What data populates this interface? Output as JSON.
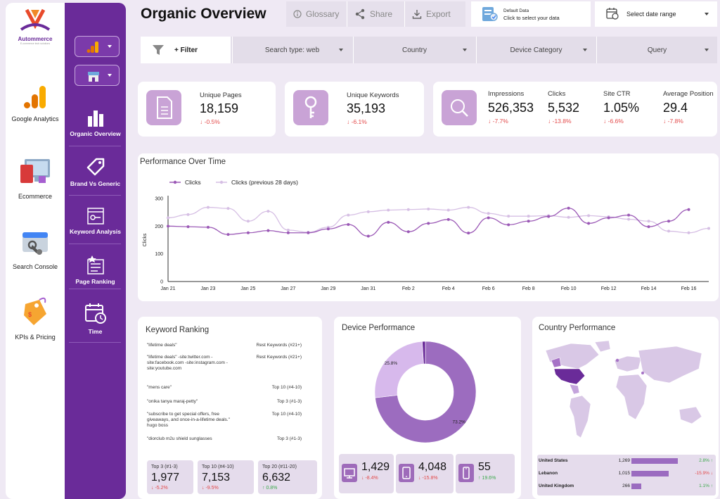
{
  "brand": {
    "name": "Autommerce",
    "tagline": "E-commerce tech solutions"
  },
  "rail": [
    {
      "label": "Google Analytics"
    },
    {
      "label": "Ecommerce"
    },
    {
      "label": "Search Console"
    },
    {
      "label": "KPIs & Pricing"
    }
  ],
  "nav": [
    {
      "label": "Organic Overview"
    },
    {
      "label": "Brand Vs Generic"
    },
    {
      "label": "Keyword Analysis"
    },
    {
      "label": "Page Ranking"
    },
    {
      "label": "Time"
    }
  ],
  "header": {
    "title": "Organic Overview",
    "glossary": "Glossary",
    "share": "Share",
    "export": "Export",
    "datasource_line1": "Default Data",
    "datasource_line2": "Click to select your data",
    "daterange": "Select date range"
  },
  "filters": {
    "filter_label": "+ Filter",
    "search_type": "Search type: web",
    "country": "Country",
    "device": "Device Category",
    "query": "Query"
  },
  "kpis": {
    "unique_pages": {
      "label": "Unique Pages",
      "value": "18,159",
      "delta": "-0.5%"
    },
    "unique_keywords": {
      "label": "Unique Keywords",
      "value": "35,193",
      "delta": "-6.1%"
    },
    "impressions": {
      "label": "Impressions",
      "value": "526,353",
      "delta": "-7.7%"
    },
    "clicks": {
      "label": "Clicks",
      "value": "5,532",
      "delta": "-13.8%"
    },
    "ctr": {
      "label": "Site CTR",
      "value": "1.05%",
      "delta": "-6.6%"
    },
    "avg_position": {
      "label": "Average Position",
      "value": "29.4",
      "delta": "-7.8%"
    }
  },
  "performance": {
    "title": "Performance Over Time"
  },
  "chart_data": {
    "type": "line",
    "ylabel": "Clicks",
    "ylim": [
      0,
      300
    ],
    "yticks": [
      0,
      100,
      200,
      300
    ],
    "xticks": [
      "Jan 21",
      "Jan 23",
      "Jan 25",
      "Jan 27",
      "Jan 29",
      "Jan 31",
      "Feb 2",
      "Feb 4",
      "Feb 6",
      "Feb 8",
      "Feb 10",
      "Feb 12",
      "Feb 14",
      "Feb 16"
    ],
    "legend_position": "top-left",
    "series": [
      {
        "name": "Clicks",
        "color": "#9b59b6",
        "values": [
          200,
          198,
          196,
          170,
          176,
          184,
          176,
          176,
          190,
          206,
          164,
          214,
          180,
          210,
          224,
          175,
          230,
          205,
          218,
          235,
          265,
          210,
          230,
          240,
          198,
          218,
          260
        ]
      },
      {
        "name": "Clicks (previous 28 days)",
        "color": "#d6bfe4",
        "values": [
          230,
          242,
          268,
          264,
          218,
          254,
          186,
          178,
          196,
          240,
          252,
          258,
          260,
          262,
          258,
          268,
          246,
          236,
          236,
          238,
          232,
          238,
          234,
          225,
          218,
          182,
          176,
          192
        ]
      }
    ]
  },
  "keyword_ranking": {
    "title": "Keyword Ranking",
    "rows": [
      {
        "query": "\"lifetime deals\"",
        "rank": "Rest Keywords (#21+)"
      },
      {
        "query": "\"lifetime deals\" -site:twitter.com -site:facebook.com -site:instagram.com -site:youtube.com",
        "rank": "Rest Keywords (#21+)"
      },
      {
        "query": "\"mens care\"",
        "rank": "Top 10 (#4-10)"
      },
      {
        "query": "\"onika tanya maraj-petty\"",
        "rank": "Top 3 (#1-3)"
      },
      {
        "query": "\"subscribe to get special offers, free giveaways, and once-in-a-lifetime deals.\" hugo boss",
        "rank": "Top 10 (#4-10)"
      },
      {
        "query": "\"diorclub m2u shield sunglasses",
        "rank": "Top 3 (#1-3)"
      }
    ],
    "summary": [
      {
        "label": "Top 3 (#1-3)",
        "value": "1,977",
        "delta": "-5.2%",
        "up": false
      },
      {
        "label": "Top 10 (#4-10)",
        "value": "7,153",
        "delta": "-9.5%",
        "up": false
      },
      {
        "label": "Top 20 (#11-20)",
        "value": "6,632",
        "delta": "0.8%",
        "up": true
      }
    ]
  },
  "device_performance": {
    "title": "Device Performance",
    "donut": [
      {
        "label": "73.2%",
        "value": 73.2,
        "color": "#9c6cbf"
      },
      {
        "label": "25.8%",
        "value": 25.8,
        "color": "#d7b9ec"
      },
      {
        "label": "",
        "value": 1.0,
        "color": "#6a2b99"
      }
    ],
    "summary": [
      {
        "icon": "desktop-icon",
        "value": "1,429",
        "delta": "-8.4%",
        "up": false
      },
      {
        "icon": "tablet-icon",
        "value": "4,048",
        "delta": "-15.8%",
        "up": false
      },
      {
        "icon": "mobile-icon",
        "value": "55",
        "delta": "19.6%",
        "up": true
      }
    ]
  },
  "country_performance": {
    "title": "Country Performance",
    "rows": [
      {
        "country": "United States",
        "value": "1,269",
        "share": 1.0,
        "delta": "2.8%",
        "up": true
      },
      {
        "country": "Lebanon",
        "value": "1,015",
        "share": 0.8,
        "delta": "-15.9%",
        "up": false
      },
      {
        "country": "United Kingdom",
        "value": "266",
        "share": 0.21,
        "delta": "1.1%",
        "up": true
      }
    ]
  },
  "colors": {
    "accent": "#6a2b99",
    "light": "#c9a3d6",
    "negative": "#e34a4a",
    "positive": "#3aa94a"
  }
}
